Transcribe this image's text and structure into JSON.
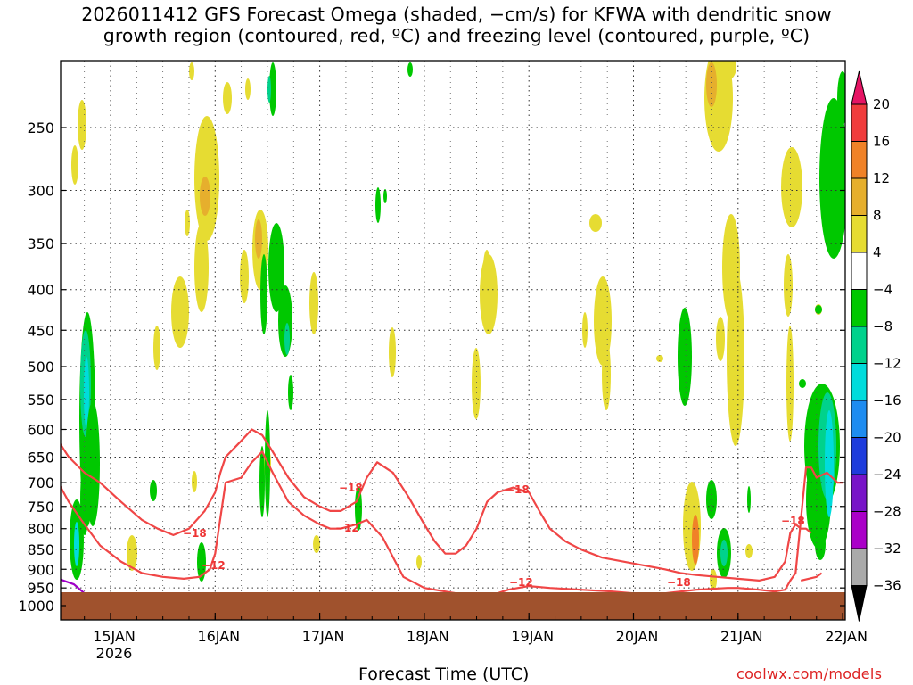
{
  "title_line1": "2026011412 GFS Forecast Omega (shaded, −cm/s) for KFWA with dendritic snow",
  "title_line2": "growth region (contoured, red, ºC) and freezing level (contoured, purple, ºC)",
  "credit": "coolwx.com/models",
  "colors": {
    "yellow": "#e6dc32",
    "light_orange": "#e6af2d",
    "orange": "#f08228",
    "green": "#00c800",
    "teal": "#00d28c",
    "cyan": "#00dcdc",
    "red_contour": "#f04646",
    "purple_contour": "#a000c8",
    "ground": "#a0522d"
  },
  "chart_data": {
    "type": "heatmap",
    "title": "2026011412 GFS Forecast Omega (shaded, −cm/s) for KFWA with dendritic snow growth region (contoured, red, ºC) and freezing level (contoured, purple, ºC)",
    "xlabel": "Forecast Time (UTC)",
    "ylabel": "",
    "x_ticks": [
      "15JAN",
      "16JAN",
      "17JAN",
      "18JAN",
      "19JAN",
      "20JAN",
      "21JAN",
      "22JAN"
    ],
    "x_year_label": "2026",
    "x_range_days": [
      14.5,
      22.0
    ],
    "y_ticks": [
      250,
      300,
      350,
      400,
      450,
      500,
      550,
      600,
      650,
      700,
      750,
      800,
      850,
      900,
      950,
      1000
    ],
    "y_range_hpa": [
      200,
      1000
    ],
    "y_scale": "log",
    "grid": true,
    "colorbar": {
      "labels": [
        "20",
        "16",
        "12",
        "8",
        "4",
        "−4",
        "−8",
        "−12",
        "−16",
        "−20",
        "−24",
        "−28",
        "−32",
        "−36"
      ],
      "colors": [
        "#e61464",
        "#f03c3c",
        "#f08228",
        "#e6af2d",
        "#e6dc32",
        "#ffffff",
        "#00c800",
        "#00d28c",
        "#00dcdc",
        "#1e8cf0",
        "#1e3cdc",
        "#7814c8",
        "#aa00c8",
        "#aaaaaa",
        "#000000"
      ]
    },
    "contour_labels": [
      "−18",
      "−12",
      "−18",
      "−12",
      "−18",
      "−12",
      "−18",
      "−18"
    ],
    "series": [
      {
        "name": "−18",
        "x": [
          14.5,
          14.6,
          14.75,
          14.9,
          15.1,
          15.3,
          15.45,
          15.6,
          15.75,
          15.9,
          16.0,
          16.05,
          16.1,
          16.25,
          16.35,
          16.45,
          16.55,
          16.7,
          16.85,
          17.0,
          17.1,
          17.2,
          17.35,
          17.45,
          17.55,
          17.7,
          17.85,
          18.0,
          18.1,
          18.2,
          18.3,
          18.4,
          18.5,
          18.6,
          18.7,
          18.85,
          19.0,
          19.1,
          19.2,
          19.35,
          19.5,
          19.7,
          19.9,
          20.1,
          20.3,
          20.45,
          20.6,
          20.8,
          21.0,
          21.2,
          21.35,
          21.45,
          21.5,
          21.55,
          21.6,
          21.65,
          21.7
        ],
        "y": [
          620,
          650,
          680,
          700,
          740,
          780,
          800,
          815,
          800,
          760,
          720,
          680,
          650,
          620,
          600,
          610,
          640,
          690,
          730,
          750,
          760,
          760,
          740,
          690,
          660,
          680,
          730,
          790,
          830,
          860,
          860,
          840,
          800,
          740,
          720,
          710,
          720,
          760,
          800,
          830,
          850,
          870,
          880,
          890,
          900,
          910,
          915,
          920,
          925,
          930,
          920,
          880,
          810,
          790,
          800,
          800,
          810
        ]
      },
      {
        "name": "−12",
        "x": [
          14.5,
          14.6,
          14.75,
          14.9,
          15.1,
          15.3,
          15.5,
          15.7,
          15.85,
          15.95,
          16.0,
          16.1,
          16.25,
          16.35,
          16.45,
          16.55,
          16.7,
          16.85,
          17.0,
          17.1,
          17.2,
          17.35,
          17.45,
          17.6,
          17.8,
          18.0,
          18.2,
          18.4,
          18.6,
          18.8,
          19.0,
          19.2,
          19.5,
          19.8,
          20.0,
          20.3,
          20.6,
          20.9,
          21.0,
          21.2,
          21.35,
          21.45,
          21.5,
          21.55,
          21.65,
          21.7,
          21.75,
          21.85,
          21.9,
          21.95,
          22.0
        ],
        "y": [
          700,
          740,
          790,
          840,
          880,
          910,
          920,
          925,
          920,
          900,
          860,
          700,
          690,
          660,
          640,
          680,
          740,
          770,
          790,
          800,
          800,
          790,
          780,
          820,
          920,
          950,
          960,
          970,
          975,
          955,
          945,
          950,
          955,
          960,
          965,
          965,
          955,
          950,
          950,
          955,
          960,
          955,
          930,
          910,
          670,
          670,
          690,
          680,
          690,
          700,
          700
        ]
      },
      {
        "name": "−12 short",
        "x": [
          21.6,
          21.75,
          21.8
        ],
        "y": [
          930,
          920,
          910
        ]
      },
      {
        "name": "0",
        "x": [
          14.5,
          14.65,
          14.75
        ],
        "y": [
          925,
          940,
          965
        ]
      },
      {
        "name": "0 short",
        "x": [
          16.85,
          16.9,
          16.95
        ],
        "y": [
          972,
          968,
          975
        ]
      }
    ],
    "shading": [
      {
        "bin": "4 to 8",
        "color": "yellow"
      },
      {
        "bin": "8 to 12",
        "color": "light_orange"
      },
      {
        "bin": "12 to 16",
        "color": "orange"
      },
      {
        "bin": "−4 to −8",
        "color": "green"
      },
      {
        "bin": "−8 to −12",
        "color": "teal"
      },
      {
        "bin": "−12 to −16",
        "color": "cyan"
      }
    ]
  }
}
